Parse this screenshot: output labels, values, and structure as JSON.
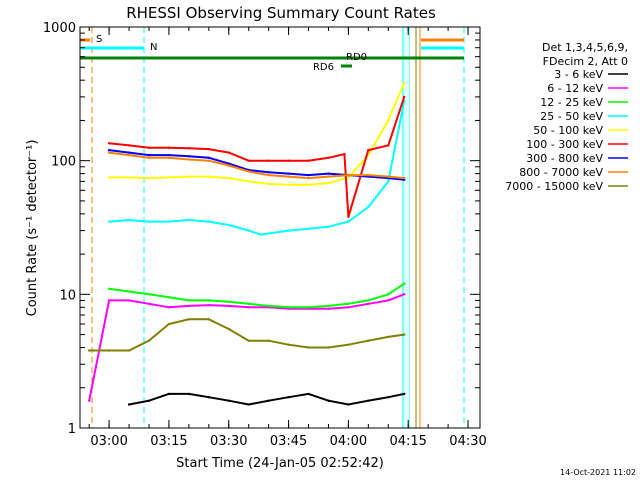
{
  "chart_data": {
    "type": "line",
    "title": "RHESSI Observing Summary Count Rates",
    "xlabel": "Start Time (24-Jan-05 02:52:42)",
    "ylabel": "Count Rate (s⁻¹ detector⁻¹)",
    "yscale": "log",
    "ylim": [
      1,
      1000
    ],
    "xlim": [
      "02:52:42",
      "04:33:00"
    ],
    "x_ticks": [
      "03:00",
      "03:15",
      "03:30",
      "03:45",
      "04:00",
      "04:15",
      "04:30"
    ],
    "y_ticks": [
      "1",
      "10",
      "100",
      "1000"
    ],
    "grid": false,
    "legend_position": "right",
    "legend_header": [
      "Det 1,3,4,5,6,9,",
      "FDecim 2, Att 0"
    ],
    "series": [
      {
        "name": "3 - 6 keV",
        "color": "#000000",
        "x": [
          "03:05",
          "03:10",
          "03:15",
          "03:20",
          "03:25",
          "03:30",
          "03:35",
          "03:40",
          "03:45",
          "03:50",
          "03:55",
          "04:00",
          "04:05",
          "04:10",
          "04:14"
        ],
        "y": [
          1.5,
          1.6,
          1.8,
          1.8,
          1.7,
          1.6,
          1.5,
          1.6,
          1.7,
          1.8,
          1.6,
          1.5,
          1.6,
          1.7,
          1.8
        ]
      },
      {
        "name": "6 - 12 keV",
        "color": "#ff00ff",
        "x": [
          "02:55",
          "03:00",
          "03:05",
          "03:10",
          "03:15",
          "03:20",
          "03:25",
          "03:30",
          "03:35",
          "03:40",
          "03:45",
          "03:50",
          "03:55",
          "04:00",
          "04:05",
          "04:10",
          "04:14"
        ],
        "y": [
          1.6,
          9.0,
          9.0,
          8.5,
          8.0,
          8.2,
          8.3,
          8.2,
          8.0,
          8.0,
          7.8,
          7.8,
          7.8,
          8.0,
          8.5,
          9.0,
          10.0
        ]
      },
      {
        "name": "12 - 25 keV",
        "color": "#00ff00",
        "x": [
          "03:00",
          "03:05",
          "03:10",
          "03:15",
          "03:20",
          "03:25",
          "03:30",
          "03:35",
          "03:40",
          "03:45",
          "03:50",
          "03:55",
          "04:00",
          "04:05",
          "04:10",
          "04:14"
        ],
        "y": [
          11.0,
          10.5,
          10.0,
          9.5,
          9.0,
          9.0,
          8.8,
          8.5,
          8.2,
          8.0,
          8.0,
          8.2,
          8.5,
          9.0,
          10.0,
          12.0
        ]
      },
      {
        "name": "25 - 50 keV",
        "color": "#00ffff",
        "x": [
          "03:00",
          "03:05",
          "03:10",
          "03:15",
          "03:20",
          "03:25",
          "03:30",
          "03:35",
          "03:38",
          "03:45",
          "03:50",
          "03:55",
          "04:00",
          "04:05",
          "04:10",
          "04:14"
        ],
        "y": [
          35,
          36,
          35,
          35,
          36,
          35,
          33,
          30,
          28,
          30,
          31,
          32,
          35,
          45,
          70,
          280
        ]
      },
      {
        "name": "50 - 100 keV",
        "color": "#ffff00",
        "x": [
          "03:00",
          "03:05",
          "03:10",
          "03:15",
          "03:20",
          "03:25",
          "03:30",
          "03:35",
          "03:40",
          "03:45",
          "03:50",
          "03:55",
          "04:00",
          "04:05",
          "04:10",
          "04:14"
        ],
        "y": [
          75,
          75,
          74,
          75,
          76,
          76,
          74,
          70,
          67,
          66,
          66,
          68,
          75,
          110,
          200,
          380
        ]
      },
      {
        "name": "100 - 300 keV",
        "color": "#ff0000",
        "x": [
          "03:00",
          "03:05",
          "03:10",
          "03:15",
          "03:20",
          "03:25",
          "03:30",
          "03:35",
          "03:40",
          "03:45",
          "03:50",
          "03:55",
          "03:59",
          "04:00",
          "04:05",
          "04:10",
          "04:14"
        ],
        "y": [
          135,
          130,
          125,
          125,
          124,
          122,
          115,
          100,
          100,
          100,
          100,
          105,
          112,
          38,
          120,
          130,
          300
        ]
      },
      {
        "name": "300 - 800 keV",
        "color": "#0000ff",
        "x": [
          "03:00",
          "03:05",
          "03:10",
          "03:15",
          "03:20",
          "03:25",
          "03:30",
          "03:35",
          "03:40",
          "03:45",
          "03:50",
          "03:55",
          "04:00",
          "04:05",
          "04:10",
          "04:14"
        ],
        "y": [
          120,
          115,
          110,
          110,
          108,
          105,
          95,
          85,
          82,
          80,
          78,
          80,
          78,
          76,
          74,
          72
        ]
      },
      {
        "name": "800 - 7000 keV",
        "color": "#ff8000",
        "x": [
          "03:00",
          "03:05",
          "03:10",
          "03:15",
          "03:20",
          "03:25",
          "03:30",
          "03:35",
          "03:40",
          "03:45",
          "03:50",
          "03:55",
          "04:00",
          "04:05",
          "04:10",
          "04:14"
        ],
        "y": [
          115,
          110,
          105,
          105,
          102,
          100,
          92,
          83,
          78,
          76,
          74,
          76,
          78,
          78,
          76,
          74
        ]
      },
      {
        "name": "7000 - 15000 keV",
        "color": "#808000",
        "x": [
          "02:55",
          "03:00",
          "03:05",
          "03:10",
          "03:15",
          "03:20",
          "03:25",
          "03:30",
          "03:35",
          "03:40",
          "03:45",
          "03:50",
          "03:55",
          "04:00",
          "04:05",
          "04:10",
          "04:14"
        ],
        "y": [
          3.8,
          3.8,
          3.8,
          4.5,
          6.0,
          6.5,
          6.5,
          5.5,
          4.5,
          4.5,
          4.2,
          4.0,
          4.0,
          4.2,
          4.5,
          4.8,
          5.0
        ]
      }
    ],
    "annotations": [
      {
        "label": "S",
        "color": "#ff8000"
      },
      {
        "label": "N",
        "color": "#00ffff"
      },
      {
        "label": "RD0",
        "color": "#008000"
      },
      {
        "label": "RD6",
        "color": "#008000"
      }
    ]
  },
  "footer": {
    "date_stamp": "14-Oct-2021 11:02"
  }
}
